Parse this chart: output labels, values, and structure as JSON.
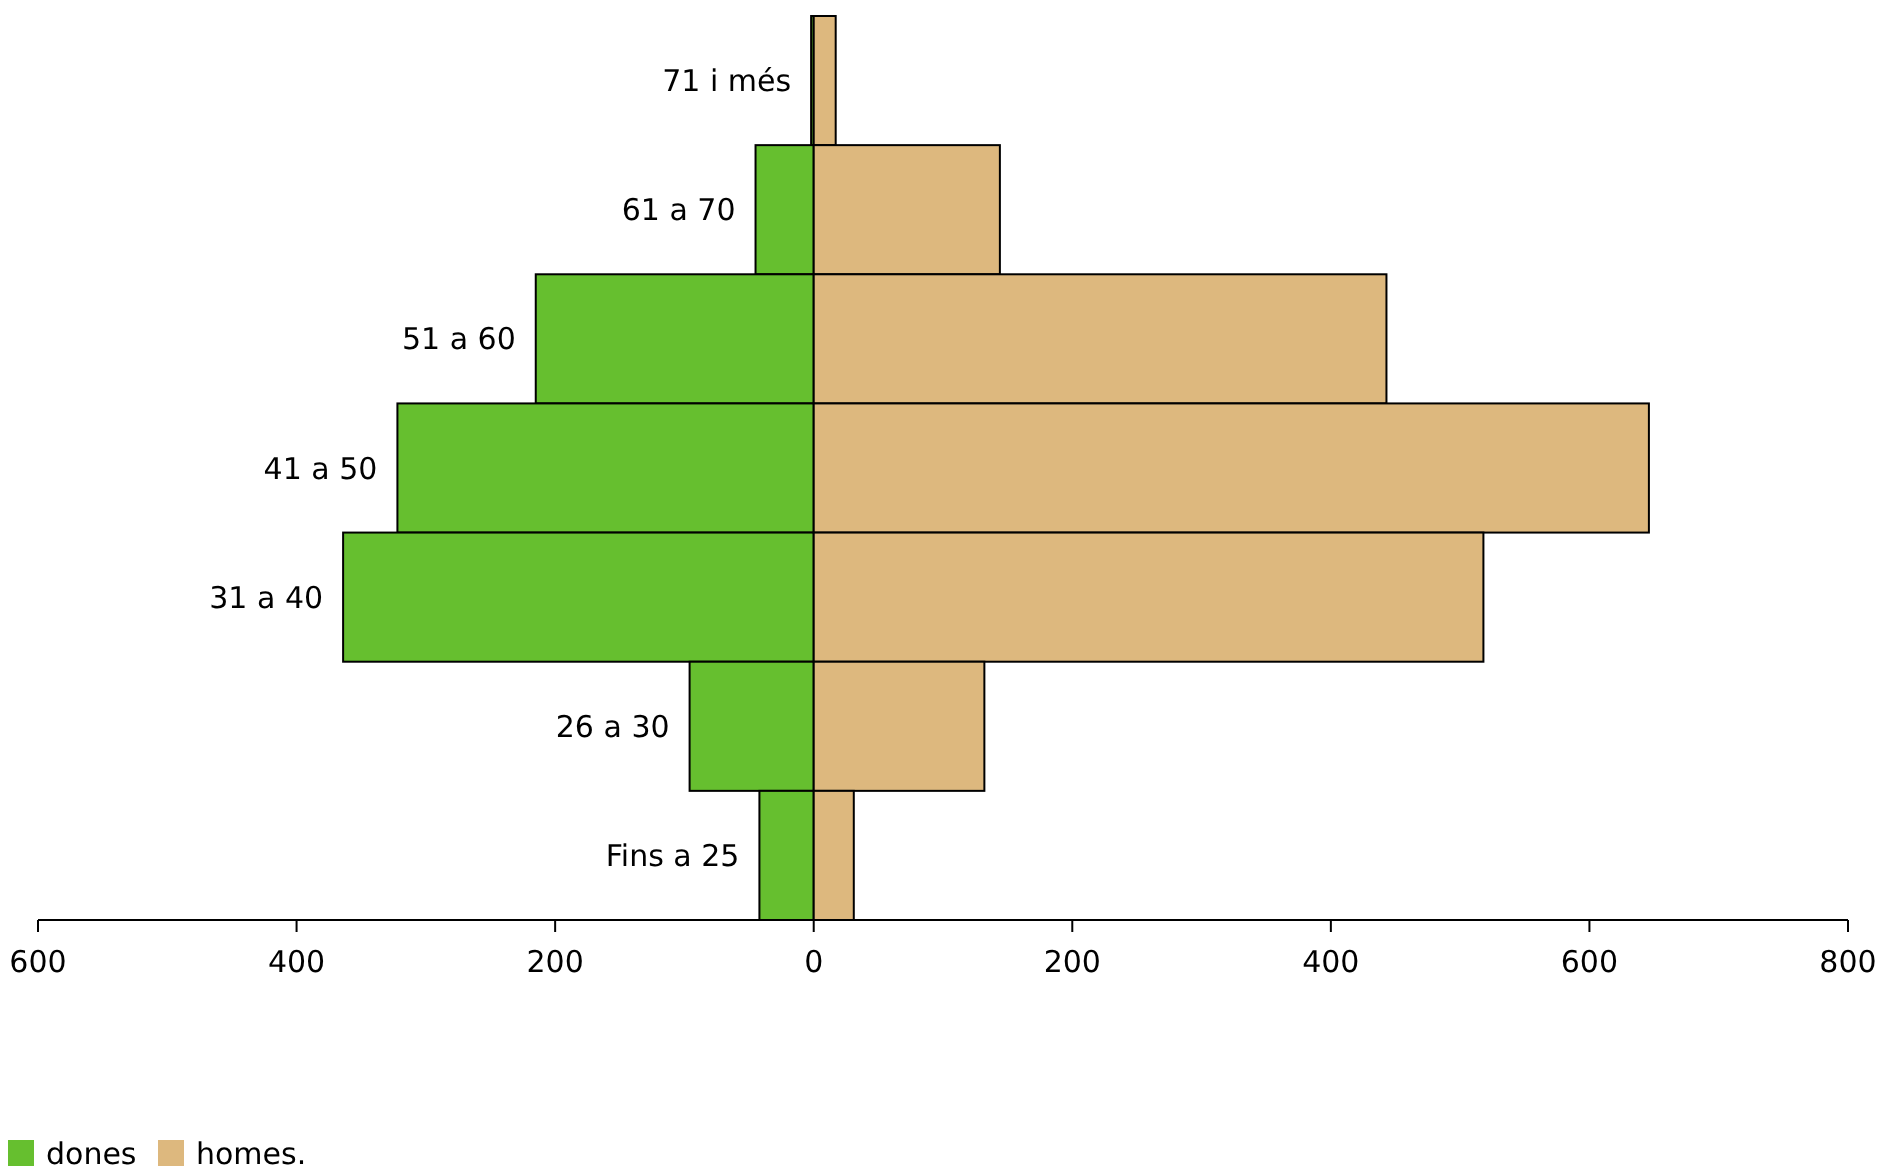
{
  "chart_data": {
    "type": "bar",
    "orientation": "horizontal",
    "stacked": true,
    "categories": [
      "71 i més",
      "61 a 70",
      "51 a 60",
      "41 a 50",
      "31 a 40",
      "26 a 30",
      "Fins a 25"
    ],
    "series": [
      {
        "name": "dones",
        "color": "#66bf2f",
        "values": [
          -2,
          -45,
          -215,
          -322,
          -364,
          -96,
          -42
        ]
      },
      {
        "name": "homes.",
        "color": "#ddb87e",
        "values": [
          17,
          144,
          443,
          646,
          518,
          132,
          31
        ]
      }
    ],
    "xlim": [
      -600,
      800
    ],
    "xticks": [
      {
        "value": -600,
        "label": "600"
      },
      {
        "value": -400,
        "label": "400"
      },
      {
        "value": -200,
        "label": "200"
      },
      0,
      200,
      400,
      600,
      800
    ],
    "legend": "bottom left",
    "grid": false
  }
}
